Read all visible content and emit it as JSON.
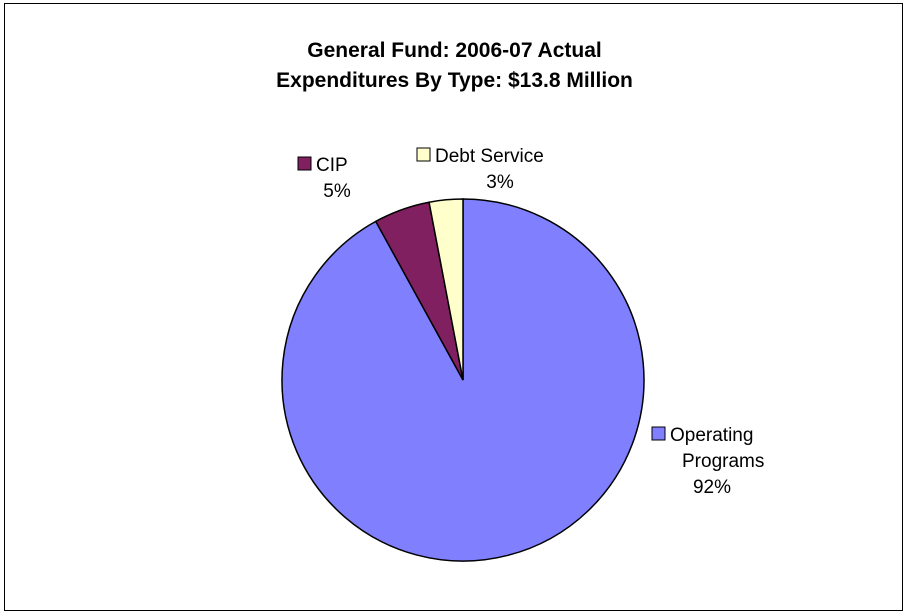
{
  "chart_data": {
    "type": "pie",
    "title": "General Fund: 2006-07 Actual",
    "subtitle": "Expenditures By Type: $13.8 Million",
    "slices": [
      {
        "name": "Operating Programs",
        "label_lines": [
          "Operating",
          "Programs"
        ],
        "value": 92,
        "pct_label": "92%",
        "color": "#8080ff"
      },
      {
        "name": "CIP",
        "label_lines": [
          "CIP"
        ],
        "value": 5,
        "pct_label": "5%",
        "color": "#802060"
      },
      {
        "name": "Debt Service",
        "label_lines": [
          "Debt Service"
        ],
        "value": 3,
        "pct_label": "3%",
        "color": "#ffffcc"
      }
    ],
    "legend_placement": "data-labels-with-keys"
  }
}
